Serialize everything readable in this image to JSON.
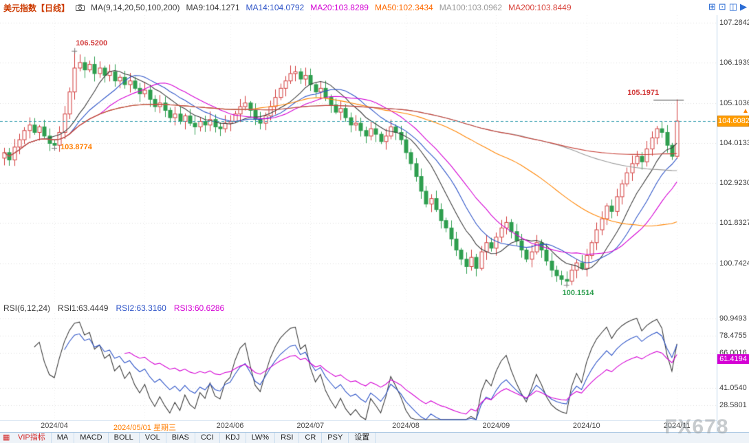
{
  "header": {
    "title": "美元指数【日线】",
    "ma_settings": "MA(9,14,20,50,100,200)",
    "ma_values": [
      {
        "text": "MA9:104.1271",
        "color": "#3c3c3c"
      },
      {
        "text": "MA14:104.0792",
        "color": "#2f55c8"
      },
      {
        "text": "MA20:103.8289",
        "color": "#d400d4"
      },
      {
        "text": "MA50:102.3434",
        "color": "#ff6a00"
      },
      {
        "text": "MA100:103.0962",
        "color": "#9a9a9a"
      },
      {
        "text": "MA200:103.8449",
        "color": "#d84038"
      }
    ],
    "window_icons": [
      {
        "name": "grid-window-icon",
        "glyph": "⊞"
      },
      {
        "name": "maximize-icon",
        "glyph": "⊡"
      },
      {
        "name": "split-panes-icon",
        "glyph": "◫"
      },
      {
        "name": "next-page-icon",
        "glyph": "▶"
      }
    ]
  },
  "chart_data": [
    {
      "type": "candlestick",
      "title": "美元指数 日线",
      "up_color": "#d23b3b",
      "down_color": "#2e9e4f",
      "price_line_color": "#2e9bac",
      "y_ticks": [
        "107.2842",
        "106.1939",
        "105.1036",
        "104.0133",
        "102.9230",
        "101.8327",
        "100.7424"
      ],
      "y_range": [
        99.63,
        107.49
      ],
      "x_labels": [
        {
          "name": "apr",
          "text": "2024/04",
          "index": 10
        },
        {
          "name": "may1",
          "text": "2024/05/01 星期三",
          "index": 28,
          "highlight": true
        },
        {
          "name": "jun",
          "text": "2024/06",
          "index": 45
        },
        {
          "name": "jul",
          "text": "2024/07",
          "index": 61
        },
        {
          "name": "aug",
          "text": "2024/08",
          "index": 80
        },
        {
          "name": "sep",
          "text": "2024/09",
          "index": 98
        },
        {
          "name": "oct",
          "text": "2024/10",
          "index": 116
        },
        {
          "name": "nov",
          "text": "2024/11",
          "index": 134
        }
      ],
      "closes": [
        103.75,
        103.55,
        103.9,
        104.1,
        104.35,
        104.5,
        104.3,
        104.45,
        104.2,
        104.0,
        103.95,
        104.3,
        104.8,
        105.4,
        106.05,
        106.2,
        106.0,
        106.15,
        105.9,
        106.05,
        105.85,
        105.95,
        105.7,
        105.8,
        105.6,
        105.7,
        105.5,
        105.35,
        105.45,
        105.2,
        105.0,
        105.1,
        104.9,
        104.7,
        104.8,
        104.6,
        104.75,
        104.55,
        104.45,
        104.6,
        104.5,
        104.65,
        104.45,
        104.4,
        104.55,
        104.6,
        104.8,
        105.0,
        105.1,
        104.9,
        104.65,
        104.55,
        104.75,
        105.0,
        105.25,
        105.5,
        105.7,
        105.9,
        105.95,
        105.75,
        105.85,
        105.6,
        105.4,
        105.5,
        105.25,
        105.05,
        104.85,
        104.95,
        104.7,
        104.5,
        104.55,
        104.35,
        104.2,
        104.4,
        104.25,
        104.05,
        104.2,
        104.45,
        104.3,
        104.1,
        103.75,
        103.45,
        103.1,
        102.7,
        102.35,
        102.5,
        102.2,
        101.9,
        101.7,
        101.4,
        101.1,
        100.85,
        100.65,
        100.9,
        100.6,
        101.05,
        101.3,
        101.15,
        101.45,
        101.7,
        101.85,
        101.6,
        101.35,
        101.1,
        100.85,
        101.05,
        101.3,
        101.1,
        100.8,
        100.55,
        100.4,
        100.3,
        100.25,
        100.55,
        100.75,
        100.6,
        100.95,
        101.3,
        101.65,
        101.95,
        102.3,
        102.15,
        102.55,
        102.9,
        103.2,
        103.45,
        103.65,
        103.5,
        103.85,
        104.15,
        104.4,
        104.3,
        103.95,
        103.65,
        104.6082
      ],
      "wick_overrides": {
        "10": {
          "low": 103.8774
        },
        "14": {
          "high": 106.52
        },
        "112": {
          "low": 100.1514
        },
        "134": {
          "high": 105.1971,
          "low": 103.58
        }
      },
      "last_price": 104.6082,
      "last_price_label": "104.6082",
      "ma_periods": [
        9,
        14,
        20,
        50,
        100,
        200
      ],
      "ma_colors": [
        "#3c3c3c",
        "#2f55c8",
        "#d400d4",
        "#ff8400",
        "#9a9a9a",
        "#c8453c"
      ],
      "annotations": [
        {
          "text": "106.5200",
          "color": "#d23b3b",
          "index": 14,
          "price": 106.52,
          "placement": "above"
        },
        {
          "text": "103.8774",
          "color": "#ff7d00",
          "index": 10,
          "price": 103.8774,
          "placement": "right"
        },
        {
          "text": "100.1514",
          "color": "#2e9e4f",
          "index": 112,
          "price": 100.1514,
          "placement": "below"
        },
        {
          "text": "105.1971",
          "color": "#d23b3b",
          "index": 134,
          "price": 105.1971,
          "placement": "line-left"
        }
      ]
    },
    {
      "type": "line",
      "title": "RSI(6,12,24)",
      "header_items": [
        {
          "text": "RSI(6,12,24)",
          "color": "#3c3c3c"
        },
        {
          "text": "RSI1:63.4449",
          "color": "#3c3c3c"
        },
        {
          "text": "RSI2:63.3160",
          "color": "#2f55c8"
        },
        {
          "text": "RSI3:60.6286",
          "color": "#d400d4"
        }
      ],
      "periods": [
        6,
        12,
        24
      ],
      "colors": [
        "#3c3c3c",
        "#2f55c8",
        "#d400d4"
      ],
      "y_ticks": [
        "90.9493",
        "78.4755",
        "66.0016",
        "41.0540",
        "28.5801"
      ],
      "y_range": [
        17.6,
        94.9
      ],
      "badge_label": "61.4194",
      "badge_value": 61.4194,
      "badge_color": "#d400d4"
    }
  ],
  "watermark": "FX678",
  "toolbar": {
    "icon": {
      "name": "vip-indicator-icon",
      "glyph": "▦"
    },
    "items": [
      {
        "name": "vip-indicators",
        "text": "VIP指标",
        "color": "#d22222"
      },
      {
        "name": "ma",
        "text": "MA"
      },
      {
        "name": "macd",
        "text": "MACD"
      },
      {
        "name": "boll",
        "text": "BOLL"
      },
      {
        "name": "vol",
        "text": "VOL"
      },
      {
        "name": "bias",
        "text": "BIAS"
      },
      {
        "name": "cci",
        "text": "CCI"
      },
      {
        "name": "kdj",
        "text": "KDJ"
      },
      {
        "name": "lw",
        "text": "LW%"
      },
      {
        "name": "rsi",
        "text": "RSI"
      },
      {
        "name": "cr",
        "text": "CR"
      },
      {
        "name": "psy",
        "text": "PSY"
      },
      {
        "name": "settings",
        "text": "设置"
      }
    ]
  }
}
